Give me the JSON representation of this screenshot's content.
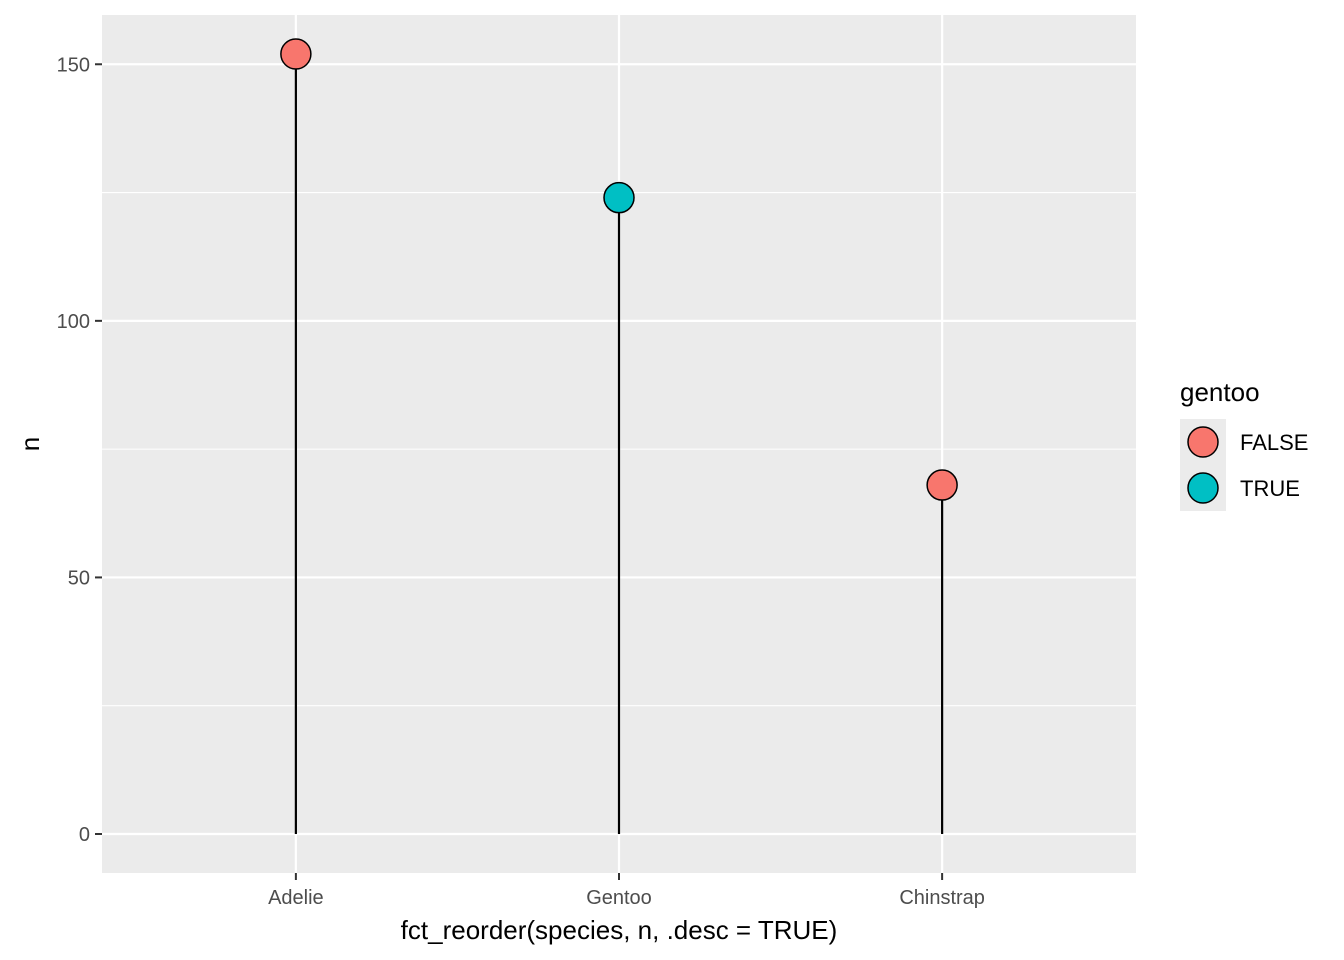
{
  "chart_data": {
    "type": "lollipop",
    "xlabel": "fct_reorder(species, n, .desc = TRUE)",
    "ylabel": "n",
    "categories": [
      "Adelie",
      "Gentoo",
      "Chinstrap"
    ],
    "values": [
      152,
      124,
      68
    ],
    "groups": [
      "FALSE",
      "TRUE",
      "FALSE"
    ],
    "ylim": [
      -7.6,
      159.6
    ],
    "yticks": [
      0,
      50,
      100,
      150
    ],
    "grid": true,
    "legend": {
      "title": "gentoo",
      "position": "right",
      "entries": [
        {
          "label": "FALSE",
          "color": "#F8766D"
        },
        {
          "label": "TRUE",
          "color": "#00BFC4"
        }
      ]
    },
    "colors": {
      "panel": "#EBEBEB",
      "grid": "#FFFFFF",
      "stem": "#000000",
      "point_outline": "#000000"
    }
  }
}
